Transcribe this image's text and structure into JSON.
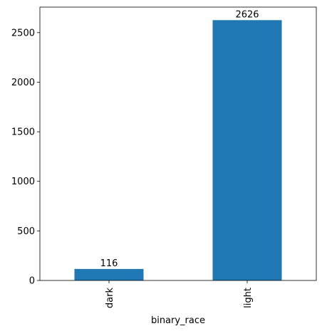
{
  "chart_data": {
    "type": "bar",
    "title": "",
    "xlabel": "binary_race",
    "ylabel": "",
    "categories": [
      "dark",
      "light"
    ],
    "values": [
      116,
      2626
    ],
    "data_labels": [
      "116",
      "2626"
    ],
    "ylim": [
      0,
      2757.3
    ],
    "yticks": [
      0,
      500,
      1000,
      1500,
      2000,
      2500
    ],
    "ytick_labels": [
      "0",
      "500",
      "1000",
      "1500",
      "2000",
      "2500"
    ],
    "grid": false,
    "legend": "none",
    "bar_color": "#1f77b4"
  }
}
